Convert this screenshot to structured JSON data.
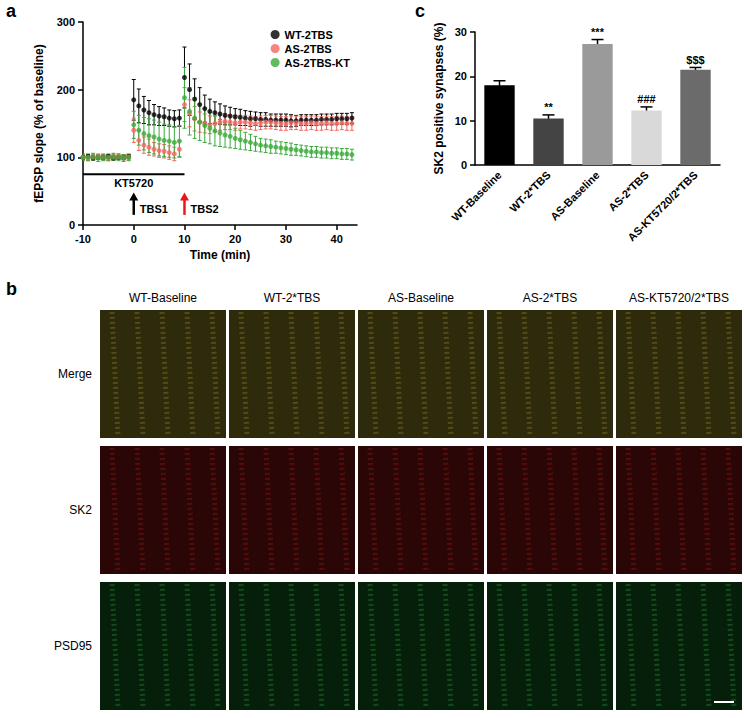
{
  "chart_data": [
    {
      "type": "scatter",
      "title": "a",
      "x_label": "Time (min)",
      "y_label": "fEPSP slope (% of baseline)",
      "x": [
        -10,
        -9,
        -8,
        -7,
        -6,
        -5,
        -4,
        -3,
        -2,
        -1,
        0,
        1,
        2,
        3,
        4,
        5,
        6,
        7,
        8,
        9,
        10,
        11,
        12,
        13,
        14,
        15,
        16,
        17,
        18,
        19,
        20,
        21,
        22,
        23,
        24,
        25,
        26,
        27,
        28,
        29,
        30,
        31,
        32,
        33,
        34,
        35,
        36,
        37,
        38,
        39,
        40,
        41,
        42,
        43
      ],
      "series": [
        {
          "name": "WT-2TBS",
          "color": "#000000",
          "values": [
            100,
            101,
            99,
            100,
            100,
            101,
            99,
            100,
            100,
            101,
            185,
            176,
            170,
            166,
            163,
            161,
            160,
            158,
            157,
            158,
            218,
            200,
            186,
            178,
            172,
            168,
            166,
            164,
            162,
            161,
            160,
            159,
            158,
            157,
            157,
            156,
            156,
            155,
            155,
            155,
            155,
            154,
            154,
            155,
            155,
            155,
            155,
            156,
            156,
            156,
            157,
            157,
            157,
            158
          ],
          "errors": [
            3,
            3,
            3,
            3,
            3,
            3,
            3,
            3,
            3,
            3,
            30,
            25,
            20,
            18,
            15,
            14,
            13,
            12,
            12,
            12,
            45,
            38,
            30,
            25,
            20,
            18,
            16,
            15,
            14,
            13,
            12,
            12,
            11,
            11,
            10,
            10,
            10,
            9,
            9,
            9,
            9,
            9,
            8,
            8,
            8,
            8,
            8,
            8,
            8,
            8,
            8,
            8,
            8,
            8
          ]
        },
        {
          "name": "AS-2TBS",
          "color": "#f2665e",
          "values": [
            100,
            99,
            100,
            101,
            100,
            99,
            100,
            101,
            100,
            100,
            140,
            125,
            118,
            115,
            112,
            110,
            109,
            107,
            105,
            112,
            178,
            165,
            157,
            152,
            150,
            148,
            150,
            152,
            153,
            152,
            151,
            152,
            152,
            151,
            150,
            151,
            152,
            152,
            151,
            150,
            150,
            151,
            151,
            150,
            150,
            151,
            150,
            150,
            151,
            150,
            150,
            151,
            150,
            150
          ],
          "errors": [
            4,
            4,
            4,
            4,
            4,
            4,
            4,
            4,
            4,
            4,
            18,
            15,
            12,
            12,
            10,
            10,
            10,
            10,
            10,
            12,
            25,
            20,
            18,
            15,
            14,
            13,
            12,
            12,
            12,
            11,
            11,
            10,
            10,
            10,
            10,
            10,
            10,
            10,
            10,
            10,
            10,
            10,
            10,
            10,
            10,
            10,
            10,
            10,
            10,
            10,
            10,
            10,
            10,
            10
          ]
        },
        {
          "name": "AS-2TBS-KT",
          "color": "#3aab3a",
          "values": [
            100,
            100,
            101,
            99,
            100,
            100,
            101,
            100,
            99,
            100,
            148,
            140,
            135,
            132,
            130,
            127,
            125,
            124,
            122,
            124,
            188,
            168,
            158,
            152,
            147,
            143,
            139,
            136,
            133,
            131,
            128,
            126,
            124,
            122,
            120,
            118,
            117,
            116,
            115,
            114,
            113,
            112,
            111,
            110,
            109,
            108,
            108,
            107,
            107,
            106,
            106,
            105,
            105,
            104
          ],
          "errors": [
            5,
            5,
            5,
            5,
            5,
            5,
            5,
            5,
            5,
            5,
            20,
            22,
            24,
            25,
            25,
            25,
            24,
            24,
            23,
            23,
            45,
            35,
            30,
            27,
            25,
            23,
            22,
            20,
            18,
            17,
            15,
            14,
            13,
            12,
            11,
            10,
            10,
            10,
            9,
            9,
            9,
            9,
            8,
            8,
            8,
            8,
            8,
            8,
            8,
            8,
            8,
            8,
            8,
            8
          ]
        }
      ],
      "xlim": [
        -10,
        44
      ],
      "xticks": [
        -10,
        0,
        10,
        20,
        30,
        40
      ],
      "ylim": [
        0,
        300
      ],
      "yticks": [
        0,
        100,
        200,
        300
      ],
      "grid": false,
      "legend": "upper right",
      "marker": "circle",
      "treatment": {
        "text": "KT5720",
        "x": [
          -10,
          10
        ],
        "y": 75
      },
      "arrows": [
        {
          "text": "TBS1",
          "x": 0,
          "y": [
            15,
            48
          ],
          "color": "#000000"
        },
        {
          "text": "TBS2",
          "x": 10,
          "y": [
            15,
            48
          ],
          "color": "#e8161b"
        }
      ]
    },
    {
      "type": "bar",
      "title": "c",
      "y_label": "SK2 positive synapses (%)",
      "categories": [
        "WT-Baseline",
        "WT-2*TBS",
        "AS-Baseline",
        "AS-2*TBS",
        "AS-KT5720/2*TBS"
      ],
      "values": [
        18,
        10.5,
        27.3,
        12.3,
        21.5
      ],
      "errors": [
        1,
        0.8,
        1,
        0.8,
        0.5
      ],
      "colors": [
        "#000000",
        "#444444",
        "#9a9a9a",
        "#d9d9d9",
        "#6b6b6b"
      ],
      "significance": [
        null,
        "**",
        "***",
        "###",
        "$$$"
      ],
      "ylim": [
        0,
        30
      ],
      "yticks": [
        0,
        10,
        20,
        30
      ],
      "grid": false
    }
  ],
  "panel_b": {
    "title": "b",
    "columns": [
      "WT-Baseline",
      "WT-2*TBS",
      "AS-Baseline",
      "AS-2*TBS",
      "AS-KT5720/2*TBS"
    ],
    "rows": [
      "Merge",
      "SK2",
      "PSD95"
    ]
  }
}
